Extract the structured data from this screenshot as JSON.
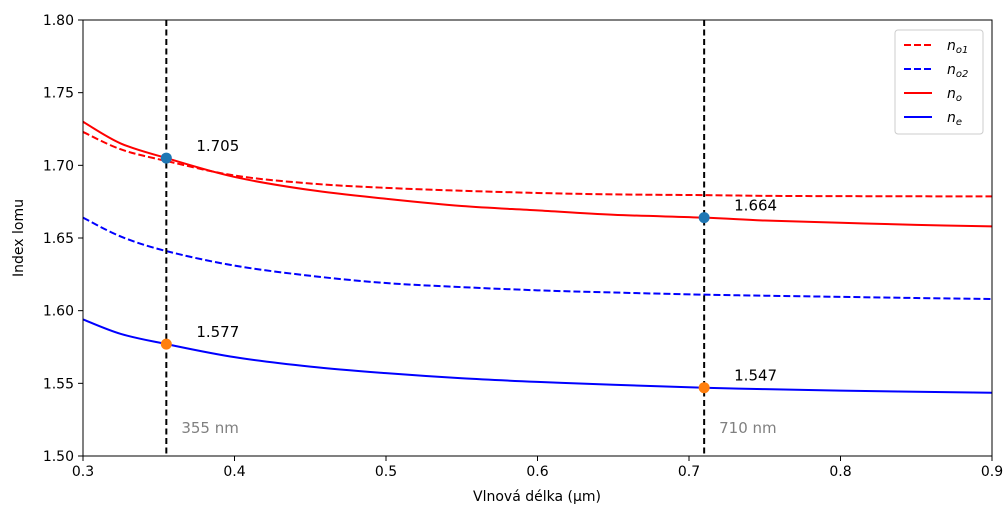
{
  "chart_data": {
    "type": "line",
    "title": "",
    "xlabel": "Vlnová délka (µm)",
    "ylabel": "Index lomu",
    "xlim": [
      0.3,
      0.9
    ],
    "ylim": [
      1.5,
      1.8
    ],
    "xticks": [
      "0.3",
      "0.4",
      "0.5",
      "0.6",
      "0.7",
      "0.8",
      "0.9"
    ],
    "yticks": [
      "1.50",
      "1.55",
      "1.60",
      "1.65",
      "1.70",
      "1.75",
      "1.80"
    ],
    "grid": false,
    "legend_position": "top-right",
    "series": [
      {
        "name_main": "n",
        "name_sub": "o1",
        "style": "dashed",
        "color": "#ff0000",
        "x": [
          0.3,
          0.325,
          0.355,
          0.4,
          0.45,
          0.5,
          0.55,
          0.6,
          0.65,
          0.71,
          0.75,
          0.8,
          0.85,
          0.9
        ],
        "y": [
          1.723,
          1.711,
          1.703,
          1.693,
          1.6875,
          1.6845,
          1.6825,
          1.681,
          1.68,
          1.6795,
          1.679,
          1.6788,
          1.6787,
          1.6786
        ]
      },
      {
        "name_main": "n",
        "name_sub": "o2",
        "style": "dashed",
        "color": "#0000ff",
        "x": [
          0.3,
          0.325,
          0.355,
          0.4,
          0.45,
          0.5,
          0.55,
          0.6,
          0.65,
          0.71,
          0.75,
          0.8,
          0.85,
          0.9
        ],
        "y": [
          1.664,
          1.651,
          1.641,
          1.631,
          1.624,
          1.619,
          1.6162,
          1.614,
          1.6125,
          1.611,
          1.6103,
          1.6095,
          1.6087,
          1.608
        ]
      },
      {
        "name_main": "n",
        "name_sub": "o",
        "style": "solid",
        "color": "#ff0000",
        "x": [
          0.3,
          0.325,
          0.355,
          0.4,
          0.45,
          0.5,
          0.55,
          0.6,
          0.65,
          0.71,
          0.75,
          0.8,
          0.85,
          0.9
        ],
        "y": [
          1.73,
          1.715,
          1.705,
          1.692,
          1.683,
          1.677,
          1.672,
          1.669,
          1.666,
          1.664,
          1.662,
          1.6605,
          1.659,
          1.658
        ]
      },
      {
        "name_main": "n",
        "name_sub": "e",
        "style": "solid",
        "color": "#0000ff",
        "x": [
          0.3,
          0.325,
          0.355,
          0.4,
          0.45,
          0.5,
          0.55,
          0.6,
          0.65,
          0.71,
          0.75,
          0.8,
          0.85,
          0.9
        ],
        "y": [
          1.594,
          1.584,
          1.577,
          1.568,
          1.5615,
          1.557,
          1.5535,
          1.551,
          1.549,
          1.547,
          1.546,
          1.545,
          1.5442,
          1.5435
        ]
      }
    ],
    "vertical_lines": [
      {
        "x": 0.355,
        "label": "355 nm"
      },
      {
        "x": 0.71,
        "label": "710 nm"
      }
    ],
    "points": [
      {
        "x": 0.355,
        "y": 1.705,
        "label": "1.705",
        "color": "#1f77b4"
      },
      {
        "x": 0.355,
        "y": 1.577,
        "label": "1.577",
        "color": "#ff7f0e"
      },
      {
        "x": 0.71,
        "y": 1.664,
        "label": "1.664",
        "color": "#1f77b4"
      },
      {
        "x": 0.71,
        "y": 1.547,
        "label": "1.547",
        "color": "#ff7f0e"
      }
    ]
  }
}
